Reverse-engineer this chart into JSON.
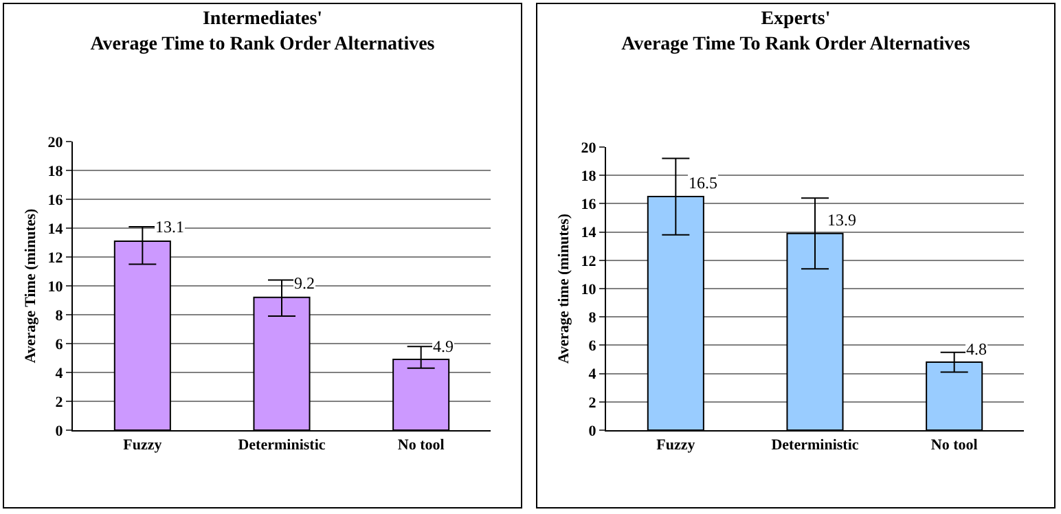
{
  "chart_data": [
    {
      "type": "bar",
      "title": "Intermediates'\nAverage Time to Rank Order Alternatives",
      "ylabel": "Average Time (minutes)",
      "categories": [
        "Fuzzy",
        "Deterministic",
        "No tool"
      ],
      "values": [
        13.1,
        9.2,
        4.9
      ],
      "color": "#cc99ff",
      "errors": [
        [
          11.5,
          14.1
        ],
        [
          7.9,
          10.4
        ],
        [
          4.3,
          5.8
        ]
      ],
      "ylim": [
        0,
        20
      ],
      "yticks": [
        0,
        2,
        4,
        6,
        8,
        10,
        12,
        14,
        16,
        18,
        20
      ],
      "grid": "y",
      "data_labels": true
    },
    {
      "type": "bar",
      "title": "Experts'\nAverage Time To Rank Order Alternatives",
      "ylabel": "Average time (minutes)",
      "categories": [
        "Fuzzy",
        "Deterministic",
        "No tool"
      ],
      "values": [
        16.5,
        13.9,
        4.8
      ],
      "color": "#99ccff",
      "errors": [
        [
          13.8,
          19.2
        ],
        [
          11.4,
          16.4
        ],
        [
          4.1,
          5.5
        ]
      ],
      "ylim": [
        0,
        20
      ],
      "yticks": [
        0,
        2,
        4,
        6,
        8,
        10,
        12,
        14,
        16,
        18,
        20
      ],
      "grid": "y",
      "data_labels": true
    }
  ]
}
